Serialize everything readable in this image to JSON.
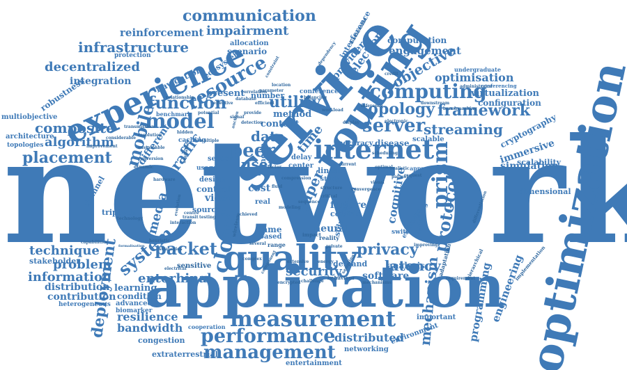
{
  "theme": {
    "word_color": "#3f7ab7",
    "word_color_dark": "#30689f",
    "background": "#ffffff"
  },
  "words": [
    "network",
    "application",
    "optimization",
    "service",
    "routing",
    "experience",
    "quality",
    "internet",
    "measurement",
    "performance",
    "management",
    "communication",
    "impairment",
    "infrastructure",
    "reinforcement",
    "decentralized",
    "integration",
    "robustness",
    "multiobjective",
    "architecture",
    "topologies",
    "placement",
    "algorithm",
    "composite",
    "model",
    "function",
    "resource",
    "mobile",
    "server",
    "computing",
    "topology",
    "framework",
    "streaming",
    "cryptography",
    "immersive",
    "scalability",
    "simulation",
    "dimensional",
    "objective",
    "optimisation",
    "virtualization",
    "configuration",
    "engagement",
    "computation",
    "undergraduate",
    "conferencing",
    "peer",
    "user",
    "data",
    "utility",
    "cloud",
    "security",
    "privacy",
    "latency",
    "software",
    "analysis",
    "mechanism",
    "prism",
    "protocol",
    "programming",
    "engineering",
    "cognitive",
    "technique",
    "stakeholder",
    "problem",
    "information",
    "distribution",
    "contribution",
    "heterogeneous",
    "deployment",
    "system",
    "packet",
    "entorhinal",
    "learning",
    "condition",
    "advanced",
    "biomarker",
    "resilience",
    "bandwidth",
    "congestion",
    "extraterrestrial",
    "cooperation",
    "distributed",
    "networking",
    "entertainment",
    "environment",
    "important",
    "media",
    "traffic",
    "different",
    "triptych",
    "channel",
    "video",
    "control",
    "source",
    "design",
    "sensor",
    "cost",
    "neural",
    "game",
    "demand",
    "failure",
    "virtual",
    "centric",
    "solution",
    "paper",
    "time",
    "content",
    "method",
    "number",
    "navigation",
    "present",
    "scenario",
    "allocation",
    "ecosystem",
    "provider",
    "selection",
    "interference",
    "conference",
    "switches",
    "modelling",
    "exchange",
    "accuracy",
    "disease",
    "scalable",
    "approach",
    "linear",
    "study",
    "real",
    "based",
    "node",
    "delay",
    "center",
    "usage",
    "caching",
    "benchmark",
    "protection",
    "relationship",
    "database",
    "parameter",
    "inference",
    "electronic",
    "display",
    "implementation",
    "hierarchical",
    "adaptation",
    "requirement",
    "range",
    "reality",
    "several",
    "impact",
    "behaviour",
    "sampling",
    "transit",
    "evolution",
    "heuristic",
    "centre",
    "technology",
    "strategies",
    "capabilities",
    "formalisation",
    "sensitive",
    "electrical",
    "wireless",
    "complex",
    "component",
    "encrypted",
    "challenge",
    "extensive",
    "sequence",
    "private",
    "structure",
    "improving",
    "differentiation",
    "benchmarking",
    "downstream",
    "administrator",
    "credit",
    "dependency",
    "fundamental",
    "constraint",
    "correlation",
    "potential",
    "transmission",
    "resolution",
    "hidden",
    "sustainable",
    "available",
    "dynamic",
    "hardware",
    "improvement",
    "considerable",
    "multiple",
    "auction",
    "detection",
    "efficient",
    "testing",
    "factor",
    "modeling",
    "optimal",
    "realistic",
    "patient",
    "convergence",
    "current",
    "visual",
    "compression",
    "achieved",
    "fluid",
    "conversion",
    "signal",
    "location",
    "workload",
    "request",
    "balancing",
    "effective",
    "provide",
    "interaction",
    "scheduling",
    "energy",
    "mechanisms",
    "critical"
  ]
}
